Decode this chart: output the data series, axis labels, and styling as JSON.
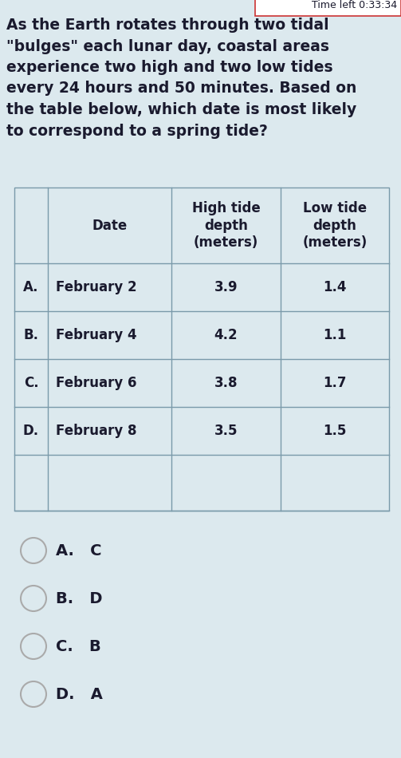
{
  "background_color": "#dce9ee",
  "top_bar_color": "#ffffff",
  "top_bar_text": "Time left 0:33:34",
  "top_bar_text_color": "#1a1a2e",
  "question_text_lines": [
    "As the Earth rotates through two tidal",
    "\"bulges\" each lunar day, coastal areas",
    "experience two high and two low tides",
    "every 24 hours and 50 minutes. Based on",
    "the table below, which date is most likely",
    "to correspond to a spring tide?"
  ],
  "question_font_size": 13.5,
  "question_text_color": "#1a1a2e",
  "table_border_color": "#7a9aaa",
  "table_bg_color": "#dce9ee",
  "table_header": [
    "",
    "Date",
    "High tide\ndepth\n(meters)",
    "Low tide\ndepth\n(meters)"
  ],
  "table_rows": [
    [
      "A.",
      "February 2",
      "3.9",
      "1.4"
    ],
    [
      "B.",
      "February 4",
      "4.2",
      "1.1"
    ],
    [
      "C.",
      "February 6",
      "3.8",
      "1.7"
    ],
    [
      "D.",
      "February 8",
      "3.5",
      "1.5"
    ],
    [
      "",
      "",
      "",
      ""
    ]
  ],
  "answer_options": [
    "A.   C",
    "B.   D",
    "C.   B",
    "D.   A"
  ],
  "answer_font_size": 14,
  "answer_text_color": "#1a1a2e",
  "circle_color": "#aaaaaa",
  "fig_width": 5.03,
  "fig_height": 9.5
}
